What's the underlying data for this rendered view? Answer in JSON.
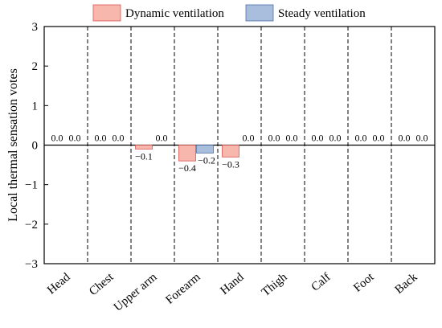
{
  "chart_data": {
    "type": "bar",
    "ylabel": "Local thermal sensation votes",
    "xlabel": "",
    "ylim": [
      -3,
      3
    ],
    "yticks": [
      3,
      2,
      1,
      0,
      -1,
      -2,
      -3
    ],
    "ytick_labels": [
      "3",
      "2",
      "1",
      "0",
      "−1",
      "−2",
      "−3"
    ],
    "categories": [
      "Head",
      "Chest",
      "Upper arm",
      "Forearm",
      "Hand",
      "Thigh",
      "Calf",
      "Foot",
      "Back"
    ],
    "series": [
      {
        "name": "Dynamic ventilation",
        "color": "#f7b7ad",
        "stroke": "#d9534f",
        "values": [
          0.0,
          0.0,
          -0.1,
          -0.4,
          -0.3,
          0.0,
          0.0,
          0.0,
          0.0
        ],
        "labels": [
          "0.0",
          "0.0",
          "−0.1",
          "−0.4",
          "−0.3",
          "0.0",
          "0.0",
          "0.0",
          "0.0"
        ]
      },
      {
        "name": "Steady ventilation",
        "color": "#a9bedc",
        "stroke": "#4a6ea9",
        "values": [
          0.0,
          0.0,
          0.0,
          -0.2,
          0.0,
          0.0,
          0.0,
          0.0,
          0.0
        ],
        "labels": [
          "0.0",
          "0.0",
          "0.0",
          "−0.2",
          "0.0",
          "0.0",
          "0.0",
          "0.0",
          "0.0"
        ]
      }
    ],
    "legend_position": "top",
    "category_separators": "dashed vertical lines",
    "zero_line": true,
    "grid": false
  }
}
